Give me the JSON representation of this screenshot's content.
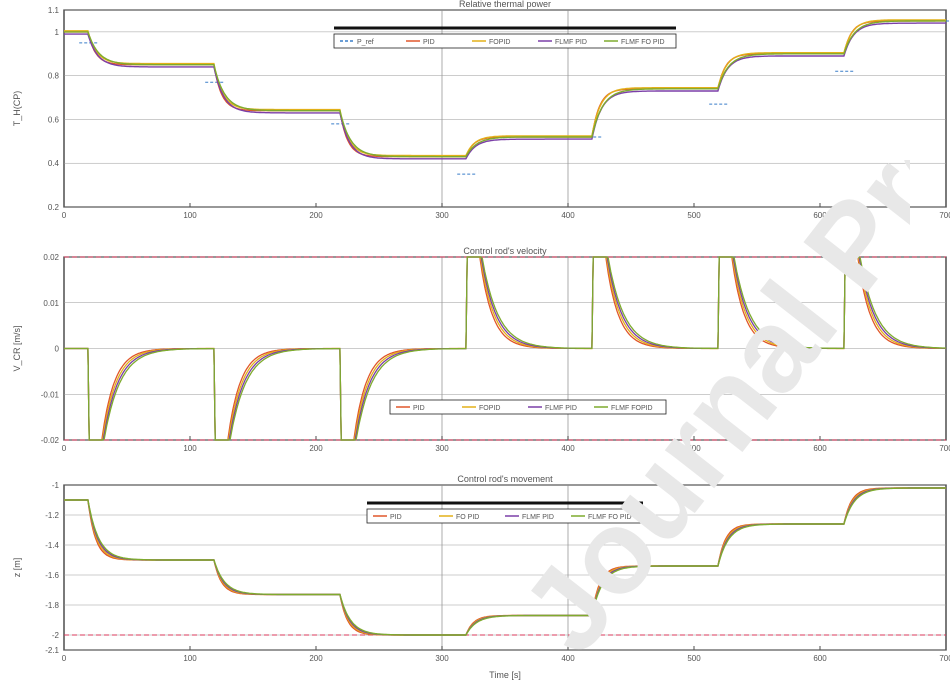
{
  "colors": {
    "line_a": "#e0572a",
    "line_b": "#e2b019",
    "line_c": "#7b3fa8",
    "line_d": "#7eab2e",
    "reference": "#3a7ec9",
    "limit": "#d8385b",
    "watermark": "#e8e8e8"
  },
  "watermark_text": "Journal Pre-proof",
  "chart_data": [
    {
      "type": "line",
      "title": "Relative thermal power",
      "xlabel": "",
      "ylabel": "T_H(CP)",
      "xlim": [
        0,
        700
      ],
      "ylim": [
        0.2,
        1.1
      ],
      "xticks": [
        "0",
        "100",
        "200",
        "300",
        "400",
        "500",
        "600",
        "700"
      ],
      "yticks": [
        "0.2",
        "0.4",
        "0.6",
        "0.8",
        "1",
        "1.1"
      ],
      "legend_position": "top",
      "legend": [
        "P_ref",
        "PID",
        "FOPID",
        "FLMF PID",
        "FLMF FO PID"
      ],
      "reference": {
        "name": "P_ref",
        "x": [
          20,
          120,
          220,
          320,
          420,
          520,
          620,
          700
        ],
        "y": [
          0.95,
          0.77,
          0.58,
          0.35,
          0.52,
          0.67,
          0.82,
          1.05
        ]
      },
      "steps": [
        [
          0,
          1.0
        ],
        [
          20,
          0.85
        ],
        [
          120,
          0.64
        ],
        [
          220,
          0.43
        ],
        [
          320,
          0.52
        ],
        [
          420,
          0.74
        ],
        [
          520,
          0.9
        ],
        [
          620,
          1.05
        ]
      ],
      "series": [
        {
          "name": "PID",
          "y_offset": 0.0
        },
        {
          "name": "FOPID",
          "y_offset": 0.005
        },
        {
          "name": "FLMF PID",
          "y_offset": -0.01
        },
        {
          "name": "FLMF FO PID",
          "y_offset": 0.0
        }
      ]
    },
    {
      "type": "line",
      "title": "Control rod's velocity",
      "xlabel": "",
      "ylabel": "V_CR [m/s]",
      "xlim": [
        0,
        700
      ],
      "ylim": [
        -0.02,
        0.02
      ],
      "xticks": [
        "0",
        "100",
        "200",
        "300",
        "400",
        "500",
        "600",
        "700"
      ],
      "yticks": [
        "-0.02",
        "-0.01",
        "0",
        "0.01",
        "0.02"
      ],
      "legend_position": "bottom-right",
      "legend": [
        "PID",
        "FOPID",
        "FLMF PID",
        "FLMF FOPID"
      ],
      "limits": [
        -0.02,
        0.02
      ],
      "events": [
        20,
        120,
        220,
        320,
        420,
        520,
        620
      ],
      "series": [
        {
          "name": "PID"
        },
        {
          "name": "FOPID"
        },
        {
          "name": "FLMF PID"
        },
        {
          "name": "FLMF FOPID"
        }
      ]
    },
    {
      "type": "line",
      "title": "Control rod's movement",
      "xlabel": "Time [s]",
      "ylabel": "z [m]",
      "xlim": [
        0,
        700
      ],
      "ylim": [
        -2.1,
        -1.0
      ],
      "xticks": [
        "0",
        "100",
        "200",
        "300",
        "400",
        "500",
        "600",
        "700"
      ],
      "yticks": [
        "-2.1",
        "-2",
        "-1.8",
        "-1.6",
        "-1.4",
        "-1.2",
        "-1"
      ],
      "legend_position": "top",
      "legend": [
        "PID",
        "FO PID",
        "FLMF PID",
        "FLMF FO PID"
      ],
      "limits": [
        -2.0
      ],
      "steps": [
        [
          0,
          -1.1
        ],
        [
          20,
          -1.5
        ],
        [
          120,
          -1.73
        ],
        [
          220,
          -2.0
        ],
        [
          320,
          -1.87
        ],
        [
          420,
          -1.54
        ],
        [
          520,
          -1.26
        ],
        [
          620,
          -1.02
        ]
      ],
      "series": [
        {
          "name": "PID"
        },
        {
          "name": "FO PID"
        },
        {
          "name": "FLMF PID"
        },
        {
          "name": "FLMF FO PID"
        }
      ]
    }
  ]
}
